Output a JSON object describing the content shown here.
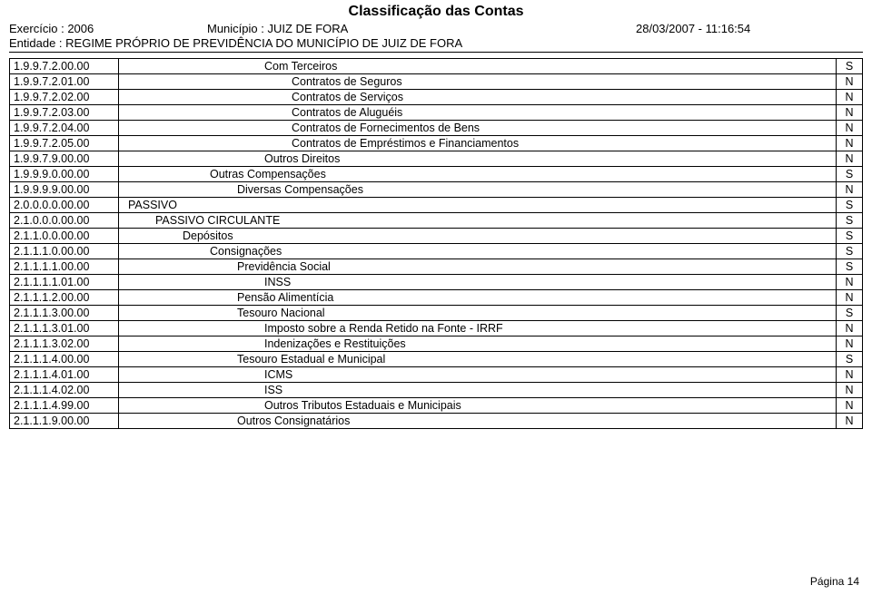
{
  "header": {
    "title": "Classificação das Contas",
    "exercise_label": "Exercício :",
    "exercise_value": "2006",
    "municipio_label": "Município :",
    "municipio_value": "JUIZ DE FORA",
    "timestamp": "28/03/2007 - 11:16:54",
    "entidade_label": "Entidade :",
    "entidade_value": "REGIME PRÓPRIO DE PREVIDÊNCIA DO MUNICÍPIO DE JUIZ DE FORA"
  },
  "table": {
    "rows": [
      {
        "code": "1.9.9.7.2.00.00",
        "desc": "Com Terceiros",
        "indent": 160,
        "flag": "S"
      },
      {
        "code": "1.9.9.7.2.01.00",
        "desc": "Contratos de Seguros",
        "indent": 190,
        "flag": "N"
      },
      {
        "code": "1.9.9.7.2.02.00",
        "desc": "Contratos de Serviços",
        "indent": 190,
        "flag": "N"
      },
      {
        "code": "1.9.9.7.2.03.00",
        "desc": "Contratos de Aluguéis",
        "indent": 190,
        "flag": "N"
      },
      {
        "code": "1.9.9.7.2.04.00",
        "desc": "Contratos de Fornecimentos de Bens",
        "indent": 190,
        "flag": "N"
      },
      {
        "code": "1.9.9.7.2.05.00",
        "desc": "Contratos de Empréstimos e Financiamentos",
        "indent": 190,
        "flag": "N"
      },
      {
        "code": "1.9.9.7.9.00.00",
        "desc": "Outros Direitos",
        "indent": 160,
        "flag": "N"
      },
      {
        "code": "1.9.9.9.0.00.00",
        "desc": "Outras Compensações",
        "indent": 100,
        "flag": "S"
      },
      {
        "code": "1.9.9.9.9.00.00",
        "desc": "Diversas Compensações",
        "indent": 130,
        "flag": "N"
      },
      {
        "code": "2.0.0.0.0.00.00",
        "desc": "PASSIVO",
        "indent": 10,
        "flag": "S"
      },
      {
        "code": "2.1.0.0.0.00.00",
        "desc": "PASSIVO CIRCULANTE",
        "indent": 40,
        "flag": "S"
      },
      {
        "code": "2.1.1.0.0.00.00",
        "desc": "Depósitos",
        "indent": 70,
        "flag": "S"
      },
      {
        "code": "2.1.1.1.0.00.00",
        "desc": "Consignações",
        "indent": 100,
        "flag": "S"
      },
      {
        "code": "2.1.1.1.1.00.00",
        "desc": "Previdência Social",
        "indent": 130,
        "flag": "S"
      },
      {
        "code": "2.1.1.1.1.01.00",
        "desc": "INSS",
        "indent": 160,
        "flag": "N"
      },
      {
        "code": "2.1.1.1.2.00.00",
        "desc": "Pensão Alimentícia",
        "indent": 130,
        "flag": "N"
      },
      {
        "code": "2.1.1.1.3.00.00",
        "desc": "Tesouro Nacional",
        "indent": 130,
        "flag": "S"
      },
      {
        "code": "2.1.1.1.3.01.00",
        "desc": "Imposto sobre a Renda Retido na Fonte - IRRF",
        "indent": 160,
        "flag": "N"
      },
      {
        "code": "2.1.1.1.3.02.00",
        "desc": "Indenizações e Restituições",
        "indent": 160,
        "flag": "N"
      },
      {
        "code": "2.1.1.1.4.00.00",
        "desc": "Tesouro Estadual e Municipal",
        "indent": 130,
        "flag": "S"
      },
      {
        "code": "2.1.1.1.4.01.00",
        "desc": "ICMS",
        "indent": 160,
        "flag": "N"
      },
      {
        "code": "2.1.1.1.4.02.00",
        "desc": "ISS",
        "indent": 160,
        "flag": "N"
      },
      {
        "code": "2.1.1.1.4.99.00",
        "desc": "Outros Tributos Estaduais e Municipais",
        "indent": 160,
        "flag": "N"
      },
      {
        "code": "2.1.1.1.9.00.00",
        "desc": "Outros Consignatários",
        "indent": 130,
        "flag": "N"
      }
    ]
  },
  "footer": {
    "page_label": "Página",
    "page_number": "14"
  },
  "style": {
    "background": "#ffffff",
    "text_color": "#000000",
    "border_color": "#000000",
    "font_family": "Verdana"
  }
}
